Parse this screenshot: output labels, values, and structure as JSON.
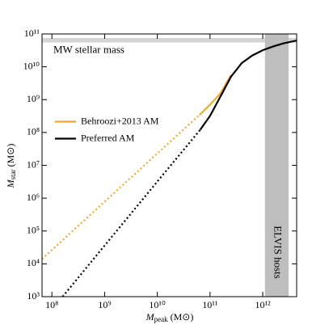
{
  "chart_data": {
    "type": "line",
    "x_label": {
      "symbol": "M",
      "subscript": "peak",
      "unit": "(M⊙)"
    },
    "y_label": {
      "symbol": "M",
      "subscript": "star",
      "unit": "(M⊙)"
    },
    "xscale": "log",
    "yscale": "log",
    "xlim": [
      65000000.0,
      4400000000000.0
    ],
    "ylim": [
      1000.0,
      100000000000.0
    ],
    "xticks": [
      {
        "value": 100000000.0,
        "label": "10⁸"
      },
      {
        "value": 1000000000.0,
        "label": "10⁹"
      },
      {
        "value": 10000000000.0,
        "label": "10¹⁰"
      },
      {
        "value": 100000000000.0,
        "label": "10¹¹"
      },
      {
        "value": 1000000000000.0,
        "label": "10¹²"
      }
    ],
    "yticks": [
      {
        "value": 1000.0,
        "label": "10³"
      },
      {
        "value": 10000.0,
        "label": "10⁴"
      },
      {
        "value": 100000.0,
        "label": "10⁵"
      },
      {
        "value": 1000000.0,
        "label": "10⁶"
      },
      {
        "value": 10000000.0,
        "label": "10⁷"
      },
      {
        "value": 100000000.0,
        "label": "10⁸"
      },
      {
        "value": 1000000000.0,
        "label": "10⁹"
      },
      {
        "value": 10000000000.0,
        "label": "10¹⁰"
      },
      {
        "value": 100000000000.0,
        "label": "10¹¹"
      }
    ],
    "legend": "center left",
    "bands": [
      {
        "label": "MW stellar mass",
        "axis": "y",
        "range": [
          55000000000.0,
          75000000000.0
        ],
        "color": "#d4d4d4"
      },
      {
        "label": "ELVIS hosts",
        "axis": "x",
        "range": [
          1100000000000.0,
          3100000000000.0
        ],
        "color": "#bebebe"
      }
    ],
    "series": [
      {
        "color": "#f5a623",
        "style": "dotted",
        "x": [
          65000000.0,
          1000000000.0,
          10000000000.0,
          63000000000.0
        ],
        "values": [
          14000.0,
          780000.0,
          23000000.0,
          340000000.0
        ]
      },
      {
        "name": "Behroozi+2013 AM",
        "color": "#f5a623",
        "style": "solid",
        "x": [
          63000000000.0,
          100000000000.0,
          160000000000.0,
          250000000000.0
        ],
        "values": [
          340000000.0,
          700000000.0,
          1600000000.0,
          5600000000.0
        ]
      },
      {
        "color": "#000000",
        "style": "dotted",
        "x": [
          160000000.0,
          1000000000.0,
          10000000000.0,
          65000000000.0
        ],
        "values": [
          1000.0,
          36000.0,
          3200000.0,
          120000000.0
        ]
      },
      {
        "name": "Preferred AM",
        "color": "#000000",
        "style": "solid",
        "x": [
          65000000000.0,
          100000000000.0,
          160000000000.0,
          250000000000.0,
          400000000000.0,
          630000000000.0,
          1000000000000.0,
          1600000000000.0,
          2500000000000.0,
          4400000000000.0
        ],
        "values": [
          120000000.0,
          320000000.0,
          1300000000.0,
          5000000000.0,
          13000000000.0,
          22000000000.0,
          32000000000.0,
          42000000000.0,
          52000000000.0,
          63000000000.0
        ]
      }
    ]
  }
}
